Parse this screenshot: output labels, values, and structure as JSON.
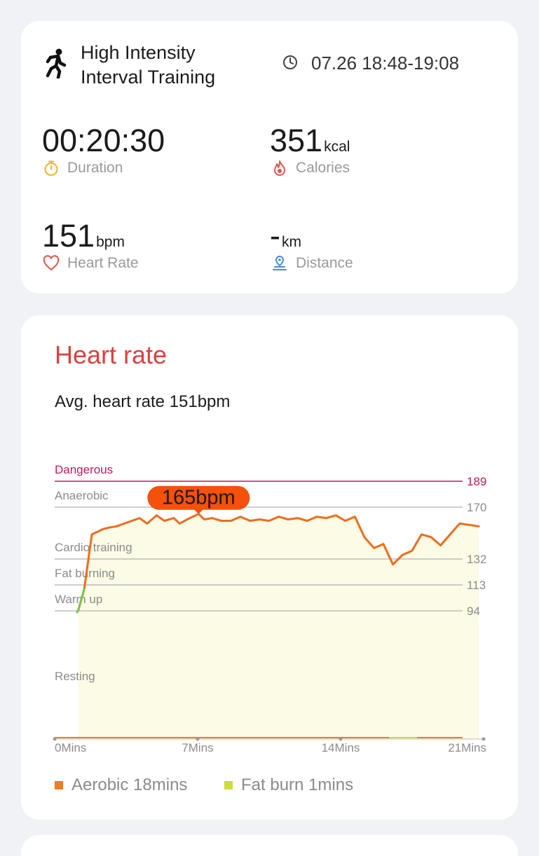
{
  "workout": {
    "title_line1": "High Intensity",
    "title_line2": "Interval Training",
    "time_range": "07.26 18:48-19:08"
  },
  "metrics": {
    "duration": {
      "value": "00:20:30",
      "unit": "",
      "label": "Duration",
      "icon": "stopwatch-icon",
      "color": "#f2b63a"
    },
    "calories": {
      "value": "351",
      "unit": "kcal",
      "label": "Calories",
      "icon": "flame-icon",
      "color": "#e5534b"
    },
    "heart_rate": {
      "value": "151",
      "unit": "bpm",
      "label": "Heart Rate",
      "icon": "heart-icon",
      "color": "#e5534b"
    },
    "distance": {
      "value": "-",
      "unit": "km",
      "label": "Distance",
      "icon": "location-pin-icon",
      "color": "#3c8ee0"
    }
  },
  "heart_rate_section": {
    "title": "Heart rate",
    "avg_text": "Avg. heart rate 151bpm",
    "peak_label": "165bpm"
  },
  "chart_data": {
    "type": "line",
    "x_unit": "minutes",
    "x_ticks": [
      "0Mins",
      "7Mins",
      "14Mins",
      "21Mins"
    ],
    "xlim": [
      0,
      21
    ],
    "ylim": [
      40,
      189
    ],
    "zones": [
      {
        "name": "Dangerous",
        "threshold": 189,
        "color": "#c2185b"
      },
      {
        "name": "Anaerobic",
        "threshold": 170,
        "color": "#bdbdbd"
      },
      {
        "name": "Cardio training",
        "threshold": 132,
        "color": "#bdbdbd"
      },
      {
        "name": "Fat burning",
        "threshold": 113,
        "color": "#bdbdbd"
      },
      {
        "name": "Warm up",
        "threshold": 94,
        "color": "#bdbdbd"
      },
      {
        "name": "Resting",
        "threshold": null,
        "color": "#bdbdbd"
      }
    ],
    "peak": {
      "x": 6.3,
      "y": 165
    },
    "series": [
      {
        "color": "#ef6c1a",
        "x": [
          0,
          0.3,
          0.5,
          0.7,
          1.0,
          1.3,
          1.6,
          2.0,
          2.4,
          2.8,
          3.2,
          3.6,
          4.1,
          4.5,
          5.0,
          5.3,
          5.7,
          6.0,
          6.3,
          6.6,
          7.0,
          7.5,
          8.0,
          8.5,
          9.0,
          9.5,
          10.0,
          10.5,
          11.0,
          11.5,
          12.0,
          12.5,
          13.0,
          13.5,
          14.0,
          14.5,
          15.0,
          15.5,
          16.0,
          16.5,
          17.0,
          17.5,
          18.0,
          18.5,
          19.0,
          19.5,
          20.0,
          20.5,
          21.0
        ],
        "y": [
          95,
          110,
          130,
          150,
          152,
          154,
          155,
          156,
          158,
          160,
          162,
          158,
          164,
          160,
          162,
          158,
          161,
          163,
          165,
          161,
          162,
          160,
          160,
          163,
          160,
          161,
          160,
          163,
          161,
          162,
          160,
          163,
          162,
          164,
          160,
          163,
          148,
          140,
          143,
          128,
          135,
          138,
          150,
          148,
          142,
          150,
          158,
          157,
          156
        ]
      }
    ]
  },
  "legend": [
    {
      "label": "Aerobic 18mins",
      "color": "#ef7d1a"
    },
    {
      "label": "Fat burn 1mins",
      "color": "#cddc39"
    }
  ]
}
